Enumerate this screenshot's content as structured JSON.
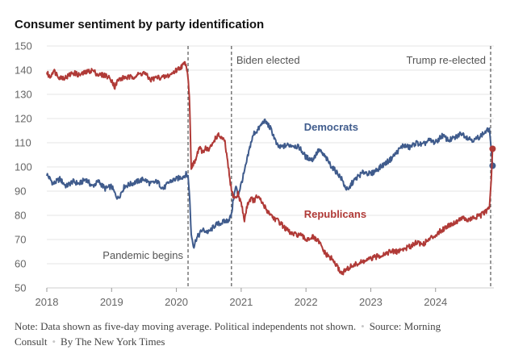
{
  "chart_data": {
    "type": "line",
    "title": "Consumer sentiment by party identification",
    "xlabel": "",
    "ylabel": "",
    "xlim": [
      2018.0,
      2024.9
    ],
    "ylim": [
      50,
      150
    ],
    "x_ticks": [
      2018,
      2019,
      2020,
      2021,
      2022,
      2023,
      2024
    ],
    "y_ticks": [
      50,
      60,
      70,
      80,
      90,
      100,
      110,
      120,
      130,
      140,
      150
    ],
    "grid": "horizontal",
    "annotations": [
      {
        "label": "Pandemic begins",
        "x": 2020.18
      },
      {
        "label": "Biden elected",
        "x": 2020.85
      },
      {
        "label": "Trump re-elected",
        "x": 2024.85
      }
    ],
    "series": [
      {
        "name": "Democrats",
        "color": "#3f5b8c",
        "end_value": 100.5,
        "x": [
          2018.0,
          2018.1,
          2018.2,
          2018.3,
          2018.4,
          2018.5,
          2018.6,
          2018.7,
          2018.8,
          2018.9,
          2019.0,
          2019.05,
          2019.1,
          2019.2,
          2019.3,
          2019.4,
          2019.5,
          2019.6,
          2019.7,
          2019.8,
          2019.9,
          2020.0,
          2020.1,
          2020.15,
          2020.18,
          2020.2,
          2020.23,
          2020.27,
          2020.3,
          2020.35,
          2020.4,
          2020.5,
          2020.6,
          2020.7,
          2020.8,
          2020.85,
          2020.88,
          2020.92,
          2020.95,
          2021.0,
          2021.05,
          2021.1,
          2021.15,
          2021.2,
          2021.25,
          2021.3,
          2021.35,
          2021.4,
          2021.45,
          2021.5,
          2021.55,
          2021.6,
          2021.7,
          2021.8,
          2021.9,
          2022.0,
          2022.1,
          2022.2,
          2022.3,
          2022.4,
          2022.5,
          2022.55,
          2022.6,
          2022.65,
          2022.7,
          2022.8,
          2022.9,
          2023.0,
          2023.1,
          2023.2,
          2023.3,
          2023.4,
          2023.5,
          2023.6,
          2023.7,
          2023.8,
          2023.9,
          2024.0,
          2024.1,
          2024.2,
          2024.3,
          2024.4,
          2024.5,
          2024.6,
          2024.7,
          2024.75,
          2024.8,
          2024.83,
          2024.85,
          2024.88
        ],
        "y": [
          97,
          93,
          95,
          92,
          94,
          93,
          95,
          92,
          94,
          91,
          92,
          89,
          87,
          92,
          93,
          94,
          95,
          93,
          94,
          91,
          94,
          95,
          96,
          97,
          96,
          90,
          72,
          67,
          70,
          72,
          74,
          73,
          76,
          77,
          78,
          80,
          87,
          92,
          88,
          93,
          98,
          104,
          110,
          114,
          115,
          117,
          119,
          118,
          116,
          113,
          109,
          108,
          109,
          109,
          108,
          104,
          103,
          107,
          104,
          100,
          97,
          95,
          92,
          90,
          93,
          96,
          98,
          97,
          99,
          101,
          103,
          106,
          109,
          108,
          110,
          109,
          111,
          110,
          113,
          111,
          112,
          114,
          112,
          111,
          113,
          114,
          115,
          116,
          110,
          100.5
        ]
      },
      {
        "name": "Republicans",
        "color": "#b03a37",
        "end_value": 107.5,
        "x": [
          2018.0,
          2018.05,
          2018.1,
          2018.2,
          2018.3,
          2018.4,
          2018.5,
          2018.6,
          2018.7,
          2018.8,
          2018.9,
          2019.0,
          2019.05,
          2019.1,
          2019.2,
          2019.3,
          2019.4,
          2019.5,
          2019.6,
          2019.7,
          2019.8,
          2019.9,
          2020.0,
          2020.05,
          2020.1,
          2020.14,
          2020.17,
          2020.2,
          2020.23,
          2020.26,
          2020.3,
          2020.35,
          2020.4,
          2020.45,
          2020.5,
          2020.55,
          2020.6,
          2020.65,
          2020.7,
          2020.75,
          2020.8,
          2020.85,
          2020.88,
          2020.92,
          2020.95,
          2021.0,
          2021.05,
          2021.1,
          2021.15,
          2021.2,
          2021.25,
          2021.3,
          2021.35,
          2021.4,
          2021.5,
          2021.6,
          2021.7,
          2021.8,
          2021.9,
          2022.0,
          2022.1,
          2022.2,
          2022.3,
          2022.35,
          2022.4,
          2022.45,
          2022.5,
          2022.55,
          2022.6,
          2022.7,
          2022.8,
          2022.9,
          2023.0,
          2023.1,
          2023.2,
          2023.3,
          2023.4,
          2023.5,
          2023.6,
          2023.7,
          2023.8,
          2023.9,
          2024.0,
          2024.1,
          2024.2,
          2024.3,
          2024.4,
          2024.5,
          2024.6,
          2024.7,
          2024.75,
          2024.8,
          2024.83,
          2024.86,
          2024.88
        ],
        "y": [
          139,
          137,
          140,
          137,
          137,
          139,
          138,
          139,
          140,
          138,
          138,
          136,
          133,
          136,
          137,
          137,
          138,
          139,
          136,
          137,
          137,
          138,
          140,
          141,
          142,
          143,
          140,
          130,
          100,
          101,
          103,
          108,
          106,
          108,
          107,
          109,
          112,
          113,
          112,
          110,
          100,
          90,
          88,
          87,
          89,
          85,
          78,
          85,
          87,
          86,
          88,
          86,
          84,
          82,
          79,
          77,
          74,
          72,
          72,
          70,
          71,
          69,
          64,
          63,
          62,
          60,
          58,
          56,
          57,
          59,
          60,
          61,
          62,
          63,
          64,
          65,
          65,
          66,
          67,
          69,
          68,
          70,
          72,
          74,
          76,
          77,
          79,
          78,
          79,
          80,
          81,
          82,
          83,
          95,
          107.5
        ]
      }
    ]
  },
  "footer": {
    "note": "Note: Data shown as five-day moving average. Political independents not shown.",
    "source": "Source: Morning Consult",
    "credit": "By The New York Times"
  }
}
